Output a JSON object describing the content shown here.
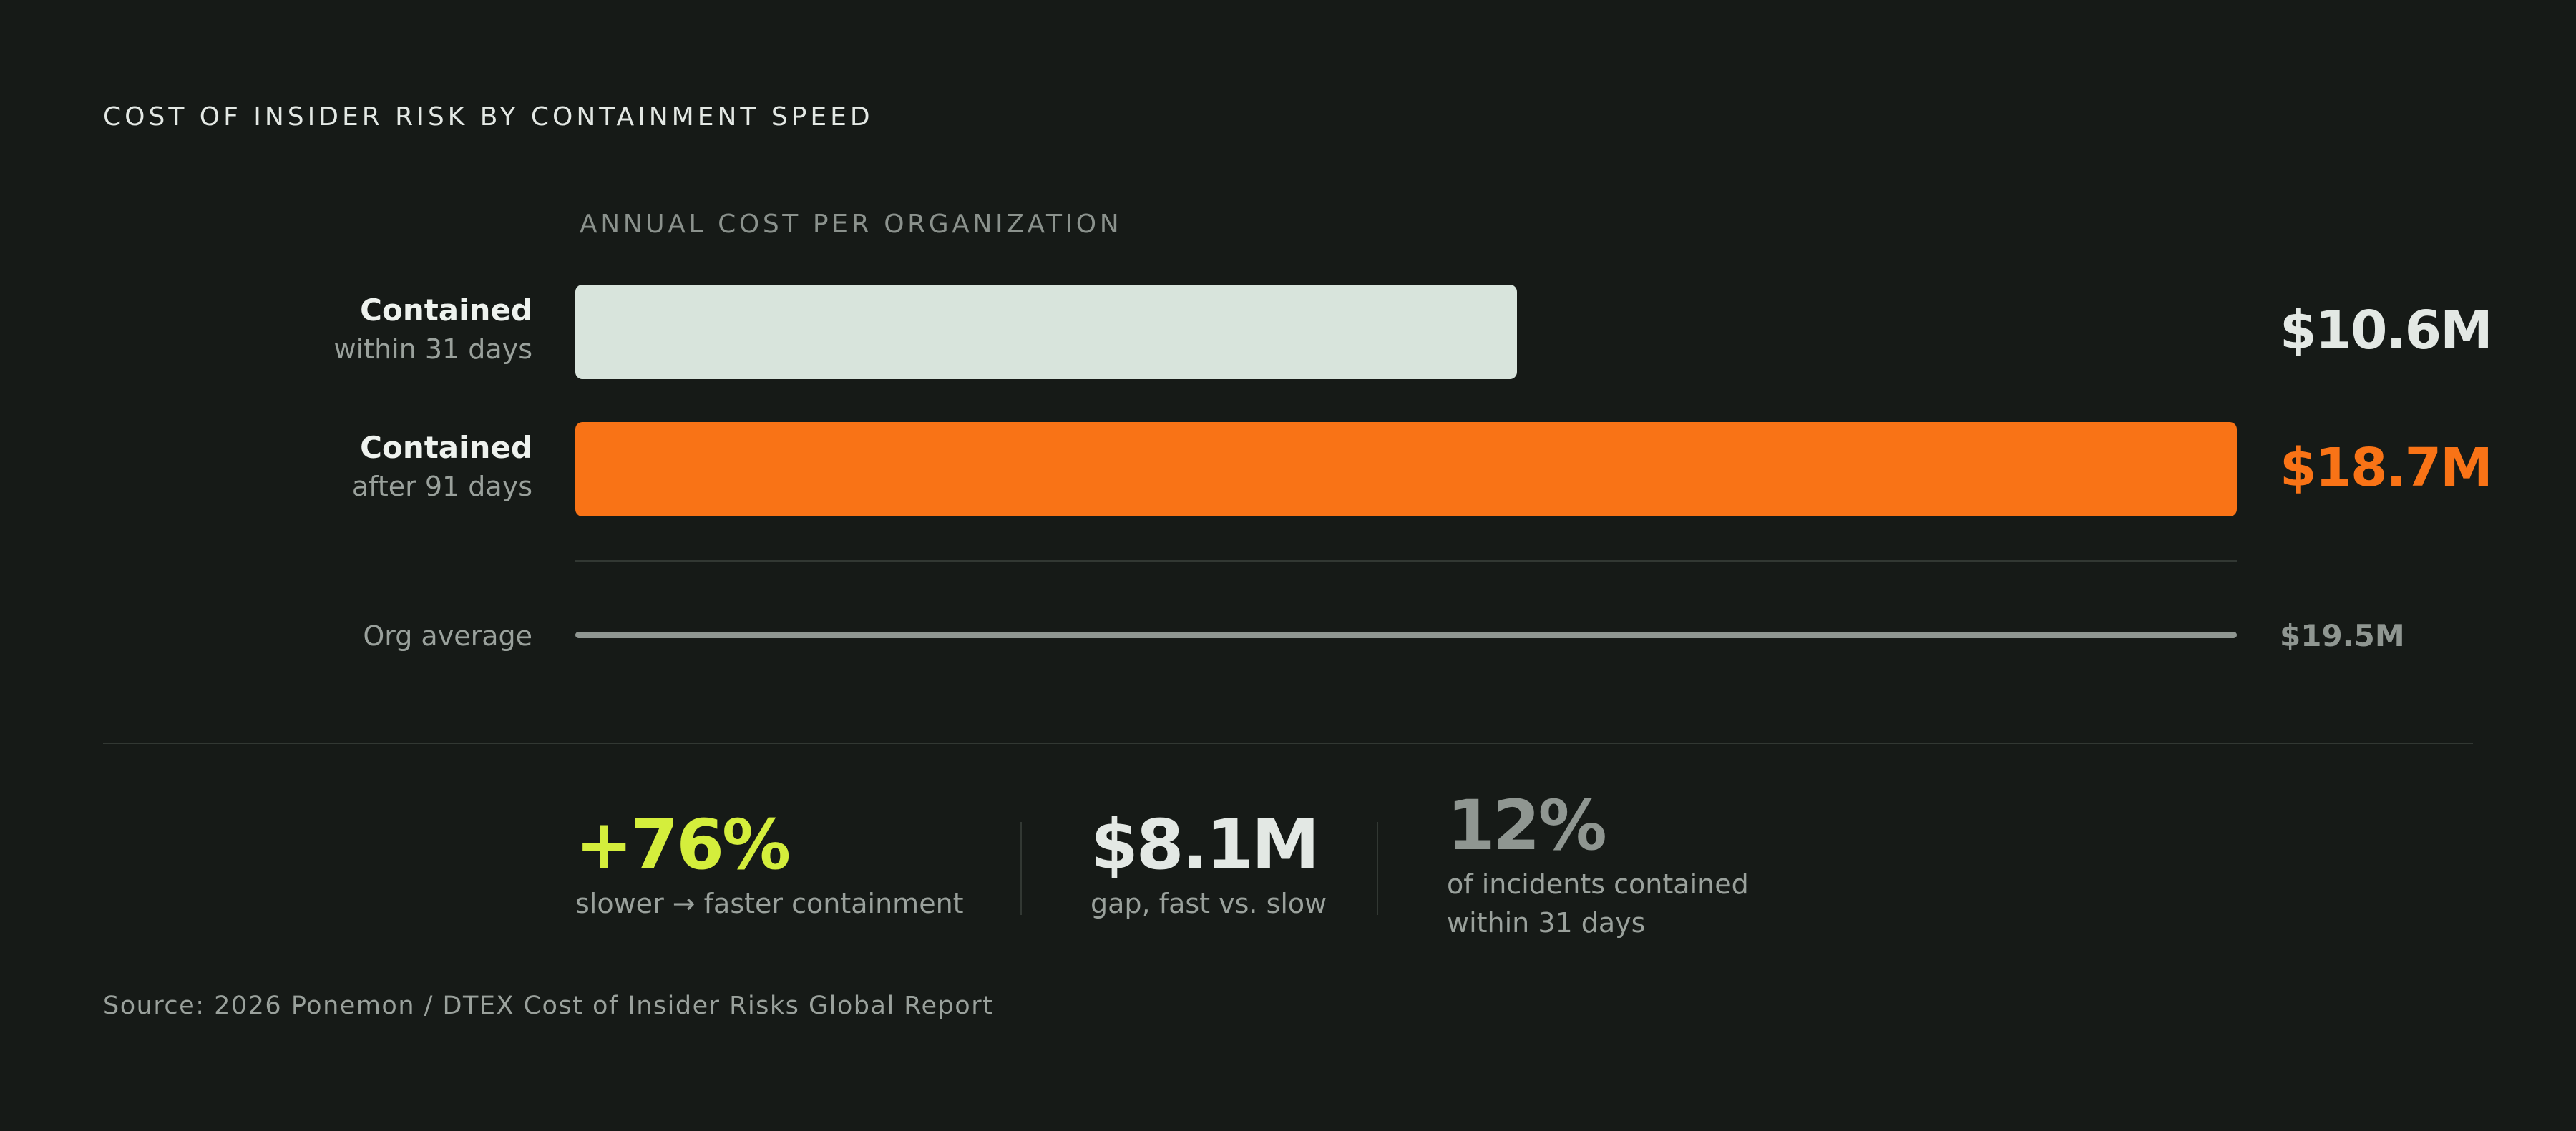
{
  "title": "COST OF INSIDER RISK BY CONTAINMENT SPEED",
  "colors": {
    "background": "#161a17",
    "fast_bar": "#d8e4dc",
    "slow_bar": "#f97316",
    "average_line": "#8f9691",
    "positive_stat": "#d4ee3c",
    "muted_stat": "#8f9691"
  },
  "chart_data": {
    "type": "bar",
    "orientation": "horizontal",
    "subtitle": "ANNUAL COST PER ORGANIZATION",
    "unit": "$M",
    "xlim": [
      0,
      18.7
    ],
    "grid": false,
    "bars": [
      {
        "label_bold": "Contained",
        "label_sub": "within 31 days",
        "value": 10.6,
        "value_label": "$10.6M",
        "color": "#d8e4dc"
      },
      {
        "label_bold": "Contained",
        "label_sub": "after 91 days",
        "value": 18.7,
        "value_label": "$18.7M",
        "color": "#f97316"
      }
    ],
    "reference": {
      "label": "Org average",
      "value": 19.5,
      "value_label": "$19.5M",
      "color": "#8f9691"
    }
  },
  "stats": [
    {
      "value": "+76%",
      "label": "slower → faster containment",
      "color": "#d4ee3c"
    },
    {
      "value": "$8.1M",
      "label": "gap, fast vs. slow",
      "color": "#e3e8e4"
    },
    {
      "value": "12%",
      "label": "of incidents contained within 31 days",
      "color": "#8f9691"
    }
  ],
  "source": "Source: 2026 Ponemon / DTEX Cost of Insider Risks Global Report"
}
